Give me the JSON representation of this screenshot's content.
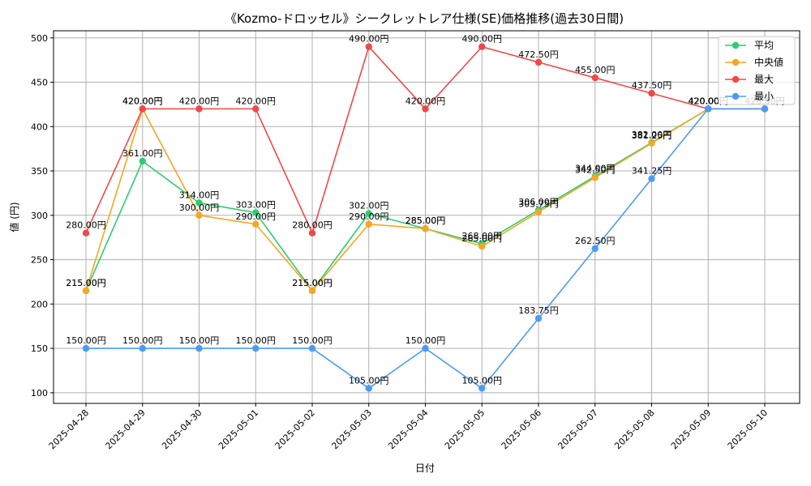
{
  "chart_data": {
    "type": "line",
    "title": "《Kozmo-ドロッセル》シークレットレア仕様(SE)価格推移(過去30日間)",
    "xlabel": "日付",
    "ylabel": "値 (円)",
    "categories": [
      "2025-04-28",
      "2025-04-29",
      "2025-04-30",
      "2025-05-01",
      "2025-05-02",
      "2025-05-03",
      "2025-05-04",
      "2025-05-05",
      "2025-05-06",
      "2025-05-07",
      "2025-05-08",
      "2025-05-09",
      "2025-05-10"
    ],
    "ylim": [
      88,
      508
    ],
    "yticks": [
      100,
      150,
      200,
      250,
      300,
      350,
      400,
      450,
      500
    ],
    "grid": true,
    "legend_position": "top-right",
    "value_suffix": "円",
    "series": [
      {
        "name": "平均",
        "color": "#2ecc71",
        "values": [
          215,
          361,
          314,
          303,
          215,
          302,
          285,
          268,
          306,
          344,
          382,
          420,
          420
        ]
      },
      {
        "name": "中央値",
        "color": "#f5a623",
        "values": [
          215,
          420,
          300,
          290,
          215,
          290,
          285,
          265,
          303.75,
          342.5,
          381.25,
          420,
          420
        ]
      },
      {
        "name": "最大",
        "color": "#f04848",
        "values": [
          280,
          420,
          420,
          420,
          280,
          490,
          420,
          490,
          472.5,
          455,
          437.5,
          420,
          420
        ]
      },
      {
        "name": "最小",
        "color": "#4b9bf5",
        "values": [
          150,
          150,
          150,
          150,
          150,
          105,
          150,
          105,
          183.75,
          262.5,
          341.25,
          420,
          420
        ]
      }
    ]
  }
}
